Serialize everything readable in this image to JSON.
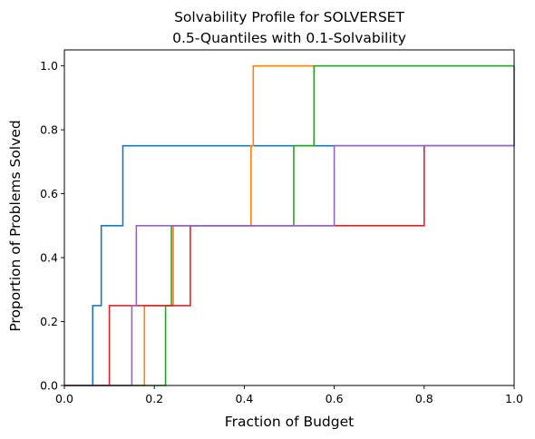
{
  "chart_data": {
    "type": "line",
    "title": "Solvability Profile for SOLVERSET",
    "subtitle": "0.5-Quantiles with 0.1-Solvability",
    "xlabel": "Fraction of Budget",
    "ylabel": "Proportion of Problems Solved",
    "xlim": [
      0.0,
      1.0
    ],
    "ylim": [
      0.0,
      1.05
    ],
    "x_ticks": [
      "0.0",
      "0.2",
      "0.4",
      "0.6",
      "0.8",
      "1.0"
    ],
    "y_ticks": [
      "0.0",
      "0.2",
      "0.4",
      "0.6",
      "0.8",
      "1.0"
    ],
    "grid": false,
    "legend": "none",
    "step_style": "post",
    "series": [
      {
        "color": "#1f77b4",
        "x": [
          0.0,
          0.063,
          0.082,
          0.13,
          1.0
        ],
        "y": [
          0.0,
          0.25,
          0.5,
          0.75,
          0.75
        ]
      },
      {
        "color": "#ff7f0e",
        "x": [
          0.0,
          0.178,
          0.242,
          0.415,
          0.42,
          1.0
        ],
        "y": [
          0.0,
          0.25,
          0.5,
          0.75,
          1.0,
          1.0
        ]
      },
      {
        "color": "#2ca02c",
        "x": [
          0.0,
          0.225,
          0.238,
          0.51,
          0.555,
          1.0
        ],
        "y": [
          0.0,
          0.25,
          0.5,
          0.75,
          1.0,
          1.0
        ]
      },
      {
        "color": "#d62728",
        "x": [
          0.0,
          0.1,
          0.28,
          0.8,
          1.0
        ],
        "y": [
          0.0,
          0.25,
          0.5,
          0.75,
          0.75
        ]
      },
      {
        "color": "#9467bd",
        "x": [
          0.0,
          0.15,
          0.16,
          0.6,
          1.0,
          1.0
        ],
        "y": [
          0.0,
          0.25,
          0.5,
          0.75,
          0.75,
          1.0
        ]
      }
    ]
  }
}
